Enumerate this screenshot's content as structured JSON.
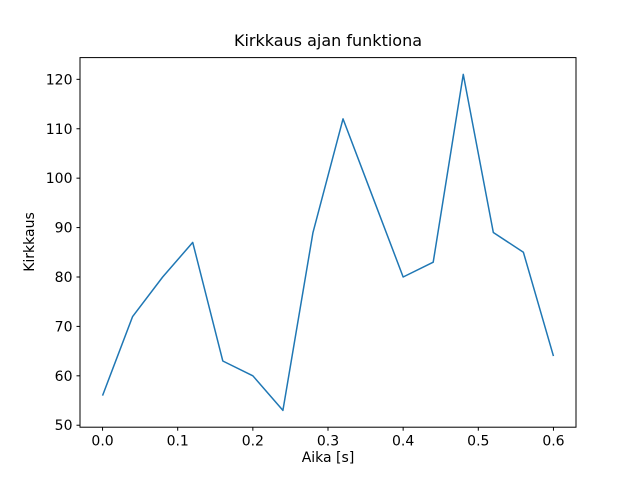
{
  "figure": {
    "background": "#ffffff",
    "title": "Kirkkaus ajan funktiona",
    "xlabel": "Aika [s]",
    "ylabel": "Kirkkaus"
  },
  "chart_data": {
    "type": "line",
    "title": "Kirkkaus ajan funktiona",
    "xlabel": "Aika [s]",
    "ylabel": "Kirkkaus",
    "x": [
      0.0,
      0.04,
      0.08,
      0.12,
      0.16,
      0.2,
      0.24,
      0.28,
      0.32,
      0.36,
      0.4,
      0.44,
      0.48,
      0.52,
      0.56,
      0.6
    ],
    "y": [
      56,
      72,
      80,
      87,
      63,
      60,
      53,
      89,
      112,
      96,
      80,
      83,
      121,
      89,
      85,
      64
    ],
    "series_name": "Kirkkaus",
    "xlim": [
      -0.03,
      0.63
    ],
    "ylim": [
      49.6,
      124.4
    ],
    "xticks": [
      0.0,
      0.1,
      0.2,
      0.3,
      0.4,
      0.5,
      0.6
    ],
    "xtick_labels": [
      "0.0",
      "0.1",
      "0.2",
      "0.3",
      "0.4",
      "0.5",
      "0.6"
    ],
    "yticks": [
      50,
      60,
      70,
      80,
      90,
      100,
      110,
      120
    ],
    "ytick_labels": [
      "50",
      "60",
      "70",
      "80",
      "90",
      "100",
      "110",
      "120"
    ],
    "line_color": "#1f77b4",
    "axis_color": "#000000",
    "grid": false,
    "legend": null
  }
}
